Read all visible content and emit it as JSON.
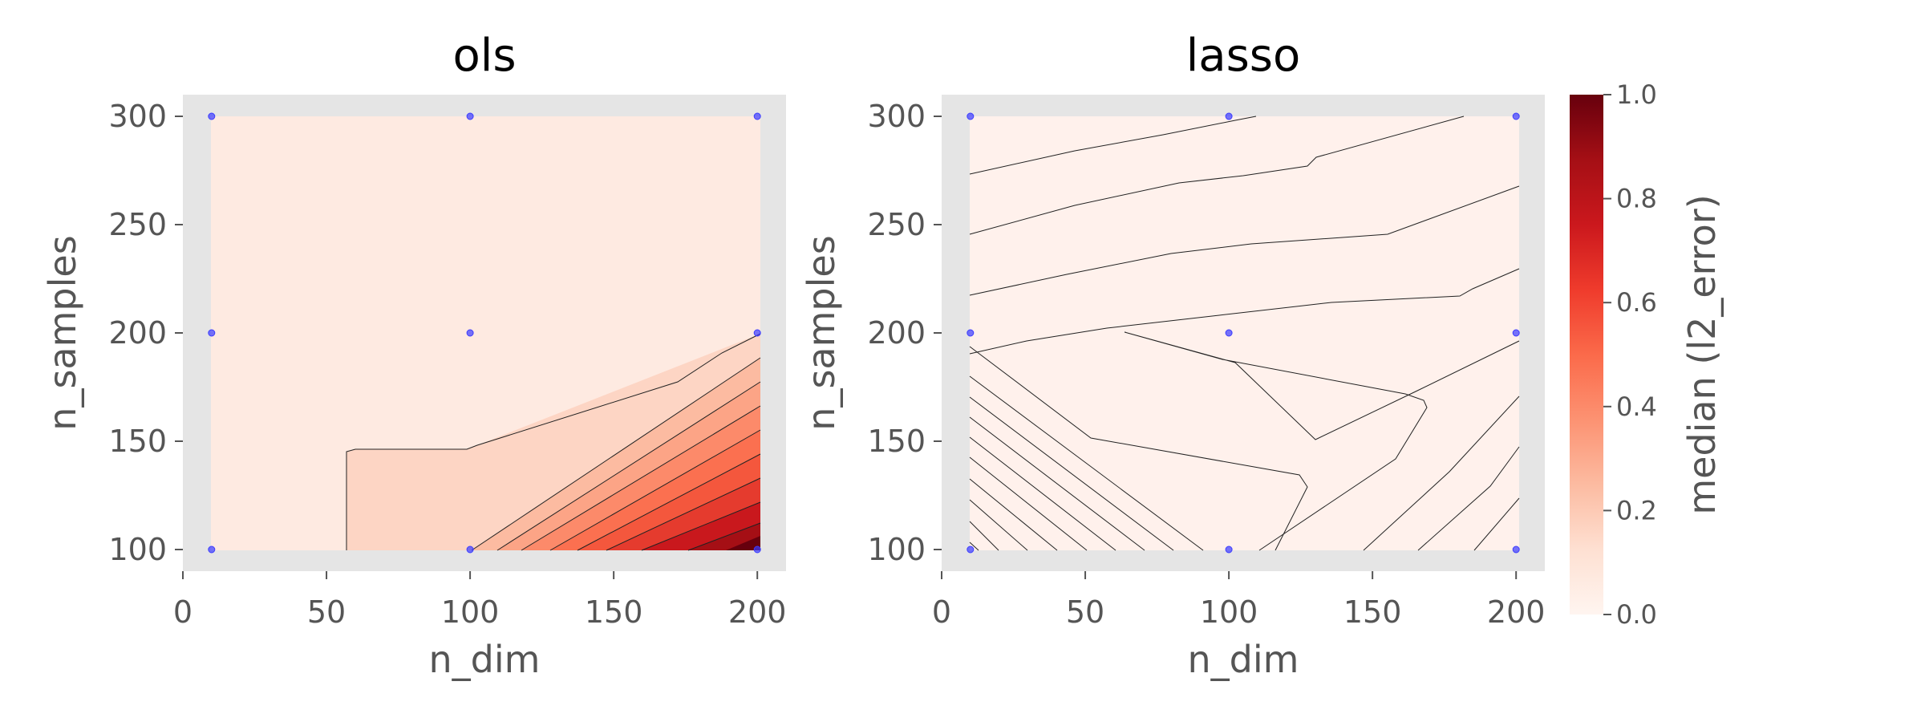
{
  "chart_data": [
    {
      "type": "contour",
      "title": "ols",
      "xlabel": "n_dim",
      "ylabel": "n_samples",
      "xlim": [
        0,
        210
      ],
      "ylim": [
        90,
        310
      ],
      "xticks": [
        0,
        50,
        100,
        150,
        200
      ],
      "yticks": [
        100,
        150,
        200,
        250,
        300
      ],
      "sample_points": [
        [
          10,
          100
        ],
        [
          10,
          200
        ],
        [
          10,
          300
        ],
        [
          100,
          100
        ],
        [
          100,
          200
        ],
        [
          100,
          300
        ],
        [
          200,
          100
        ],
        [
          200,
          200
        ],
        [
          200,
          300
        ]
      ],
      "grid": true,
      "background": "#e5e5e5"
    },
    {
      "type": "contour",
      "title": "lasso",
      "xlabel": "n_dim",
      "ylabel": "n_samples",
      "xlim": [
        0,
        210
      ],
      "ylim": [
        90,
        310
      ],
      "xticks": [
        0,
        50,
        100,
        150,
        200
      ],
      "yticks": [
        100,
        150,
        200,
        250,
        300
      ],
      "sample_points": [
        [
          10,
          100
        ],
        [
          10,
          200
        ],
        [
          10,
          300
        ],
        [
          100,
          100
        ],
        [
          100,
          200
        ],
        [
          100,
          300
        ],
        [
          200,
          100
        ],
        [
          200,
          200
        ],
        [
          200,
          300
        ]
      ],
      "grid": true,
      "background": "#e5e5e5"
    }
  ],
  "colorbar": {
    "label": "median (l2_error)",
    "ticks": [
      0.0,
      0.2,
      0.4,
      0.6,
      0.8,
      1.0
    ],
    "tick_labels": [
      "0.0",
      "0.2",
      "0.4",
      "0.6",
      "0.8",
      "1.0"
    ],
    "colormap": "Reds",
    "range": [
      0.0,
      1.0
    ]
  },
  "colors": {
    "point": "#3b3bff",
    "contour_line": "#222222",
    "tick_text": "#555555"
  }
}
